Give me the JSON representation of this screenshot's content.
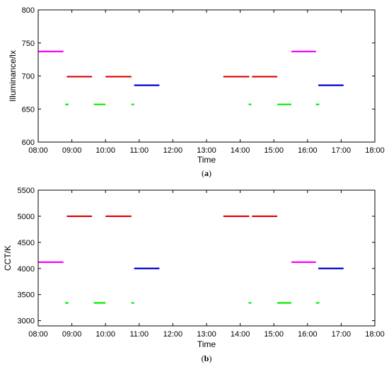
{
  "chart_data": [
    {
      "type": "line",
      "caption_letter": "a",
      "xlabel": "Time",
      "ylabel": "Illuminance/lx",
      "x_ticks": [
        "08:00",
        "09:00",
        "10:00",
        "11:00",
        "12:00",
        "13:00",
        "14:00",
        "15:00",
        "16:00",
        "17:00",
        "18:00"
      ],
      "y_ticks": [
        "600",
        "650",
        "700",
        "750",
        "800"
      ],
      "xlim": [
        8,
        18
      ],
      "ylim": [
        600,
        800
      ],
      "grid": false,
      "series": [
        {
          "color": "#ff00ff",
          "segments": [
            [
              8.0,
              8.75,
              737
            ],
            [
              15.52,
              16.25,
              737
            ]
          ]
        },
        {
          "color": "#e00000",
          "segments": [
            [
              8.85,
              9.6,
              699
            ],
            [
              10.0,
              10.77,
              699
            ],
            [
              13.5,
              14.27,
              699
            ],
            [
              14.35,
              15.1,
              699
            ]
          ]
        },
        {
          "color": "#0000d0",
          "segments": [
            [
              10.85,
              11.6,
              686
            ],
            [
              16.32,
              17.07,
              686
            ]
          ]
        },
        {
          "color": "#00ee00",
          "segments": [
            [
              8.8,
              8.9,
              657
            ],
            [
              9.65,
              10.0,
              657
            ],
            [
              10.77,
              10.85,
              657
            ],
            [
              14.25,
              14.33,
              657
            ],
            [
              15.1,
              15.52,
              657
            ],
            [
              16.25,
              16.35,
              657
            ]
          ]
        }
      ]
    },
    {
      "type": "line",
      "caption_letter": "b",
      "xlabel": "Time",
      "ylabel": "CCT/K",
      "x_ticks": [
        "08:00",
        "09:00",
        "10:00",
        "11:00",
        "12:00",
        "13:00",
        "14:00",
        "15:00",
        "16:00",
        "17:00",
        "18:00"
      ],
      "y_ticks": [
        "3000",
        "3500",
        "4000",
        "4500",
        "5000",
        "5500"
      ],
      "xlim": [
        8,
        18
      ],
      "ylim": [
        2900,
        5500
      ],
      "grid": false,
      "series": [
        {
          "color": "#ff00ff",
          "segments": [
            [
              8.0,
              8.75,
              4120
            ],
            [
              15.52,
              16.25,
              4120
            ]
          ]
        },
        {
          "color": "#e00000",
          "segments": [
            [
              8.85,
              9.6,
              5000
            ],
            [
              10.0,
              10.77,
              5000
            ],
            [
              13.5,
              14.27,
              5000
            ],
            [
              14.35,
              15.1,
              5000
            ]
          ]
        },
        {
          "color": "#0000d0",
          "segments": [
            [
              10.85,
              11.6,
              4000
            ],
            [
              16.32,
              17.07,
              4000
            ]
          ]
        },
        {
          "color": "#00ee00",
          "segments": [
            [
              8.8,
              8.9,
              3340
            ],
            [
              9.65,
              10.0,
              3340
            ],
            [
              10.77,
              10.85,
              3340
            ],
            [
              14.25,
              14.33,
              3340
            ],
            [
              15.1,
              15.52,
              3340
            ],
            [
              16.25,
              16.35,
              3340
            ]
          ]
        }
      ]
    }
  ]
}
